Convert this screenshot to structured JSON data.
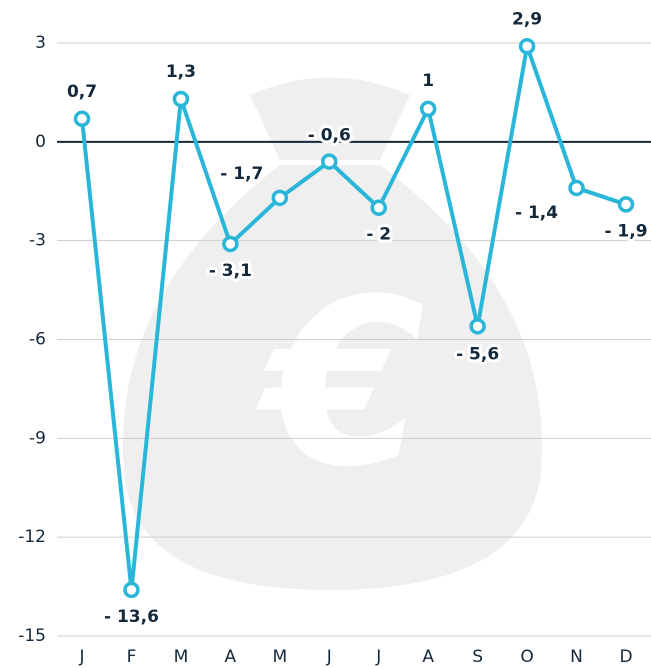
{
  "chart_data": {
    "type": "line",
    "categories": [
      "J",
      "F",
      "M",
      "A",
      "M",
      "J",
      "J",
      "A",
      "S",
      "O",
      "N",
      "D"
    ],
    "values": [
      0.7,
      -13.6,
      1.3,
      -3.1,
      -1.7,
      -0.6,
      -2,
      1,
      -5.6,
      2.9,
      -1.4,
      -1.9
    ],
    "value_labels": [
      "0,7",
      "- 13,6",
      "1,3",
      "- 3,1",
      "- 1,7",
      "- 0,6",
      "- 2",
      "1",
      "- 5,6",
      "2,9",
      "- 1,4",
      "- 1,9"
    ],
    "color": "#29b6d8",
    "ylim": [
      -15,
      3
    ],
    "yticks": [
      3,
      0,
      -3,
      -6,
      -9,
      -12,
      -15
    ],
    "grid": true
  }
}
